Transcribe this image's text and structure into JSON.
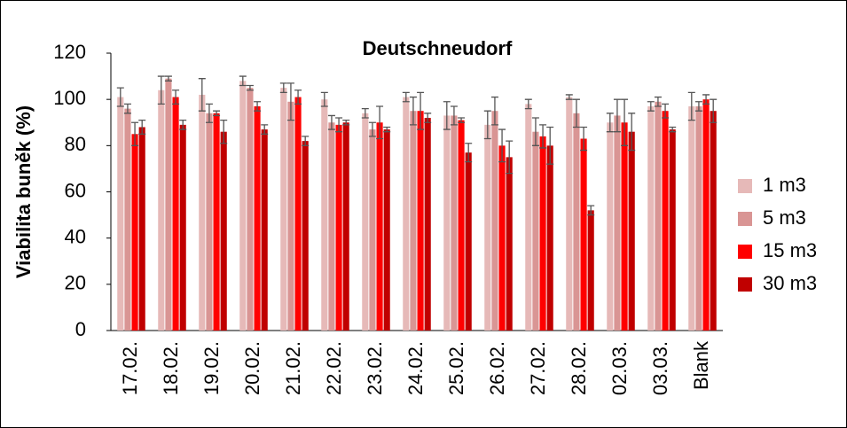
{
  "chart_data": {
    "type": "bar",
    "title": "Deutschneudorf",
    "y_label": "Viabilita buněk (%)",
    "categories": [
      "17.02.",
      "18.02.",
      "19.02.",
      "20.02.",
      "21.02.",
      "22.02.",
      "23.02.",
      "24.02.",
      "25.02.",
      "26.02.",
      "27.02.",
      "28.02.",
      "02.03.",
      "03.03.",
      "Blank"
    ],
    "series": [
      {
        "name": "1 m3",
        "color": "#e6b9b8",
        "values": [
          101,
          104,
          102,
          108,
          105,
          100,
          94,
          101,
          93,
          89,
          98,
          101,
          90,
          97,
          97
        ],
        "errors": [
          4,
          6,
          7,
          2,
          2,
          3,
          2,
          2,
          6,
          6,
          2,
          1,
          4,
          2,
          6
        ]
      },
      {
        "name": "5 m3",
        "color": "#d99594",
        "values": [
          96,
          109,
          94,
          105,
          99,
          90,
          87,
          95,
          93,
          95,
          86,
          94,
          93,
          99,
          97
        ],
        "errors": [
          2,
          1,
          4,
          1,
          8,
          3,
          3,
          6,
          4,
          6,
          6,
          6,
          7,
          2,
          2
        ]
      },
      {
        "name": "15 m3",
        "color": "#ff0000",
        "values": [
          85,
          101,
          94,
          97,
          101,
          89,
          90,
          95,
          91,
          80,
          84,
          83,
          90,
          95,
          100
        ],
        "errors": [
          5,
          3,
          1,
          2,
          3,
          3,
          7,
          8,
          1,
          7,
          5,
          5,
          10,
          3,
          2
        ]
      },
      {
        "name": "30 m3",
        "color": "#c00000",
        "values": [
          88,
          89,
          86,
          87,
          82,
          90,
          87,
          92,
          77,
          75,
          80,
          52,
          86,
          87,
          95
        ],
        "errors": [
          3,
          2,
          5,
          2,
          2,
          1,
          1,
          2,
          4,
          7,
          8,
          2,
          8,
          1,
          5
        ]
      }
    ],
    "ylim": [
      0,
      120
    ],
    "yticks": [
      0,
      20,
      40,
      60,
      80,
      100,
      120
    ],
    "grid": false,
    "legend": "right"
  }
}
